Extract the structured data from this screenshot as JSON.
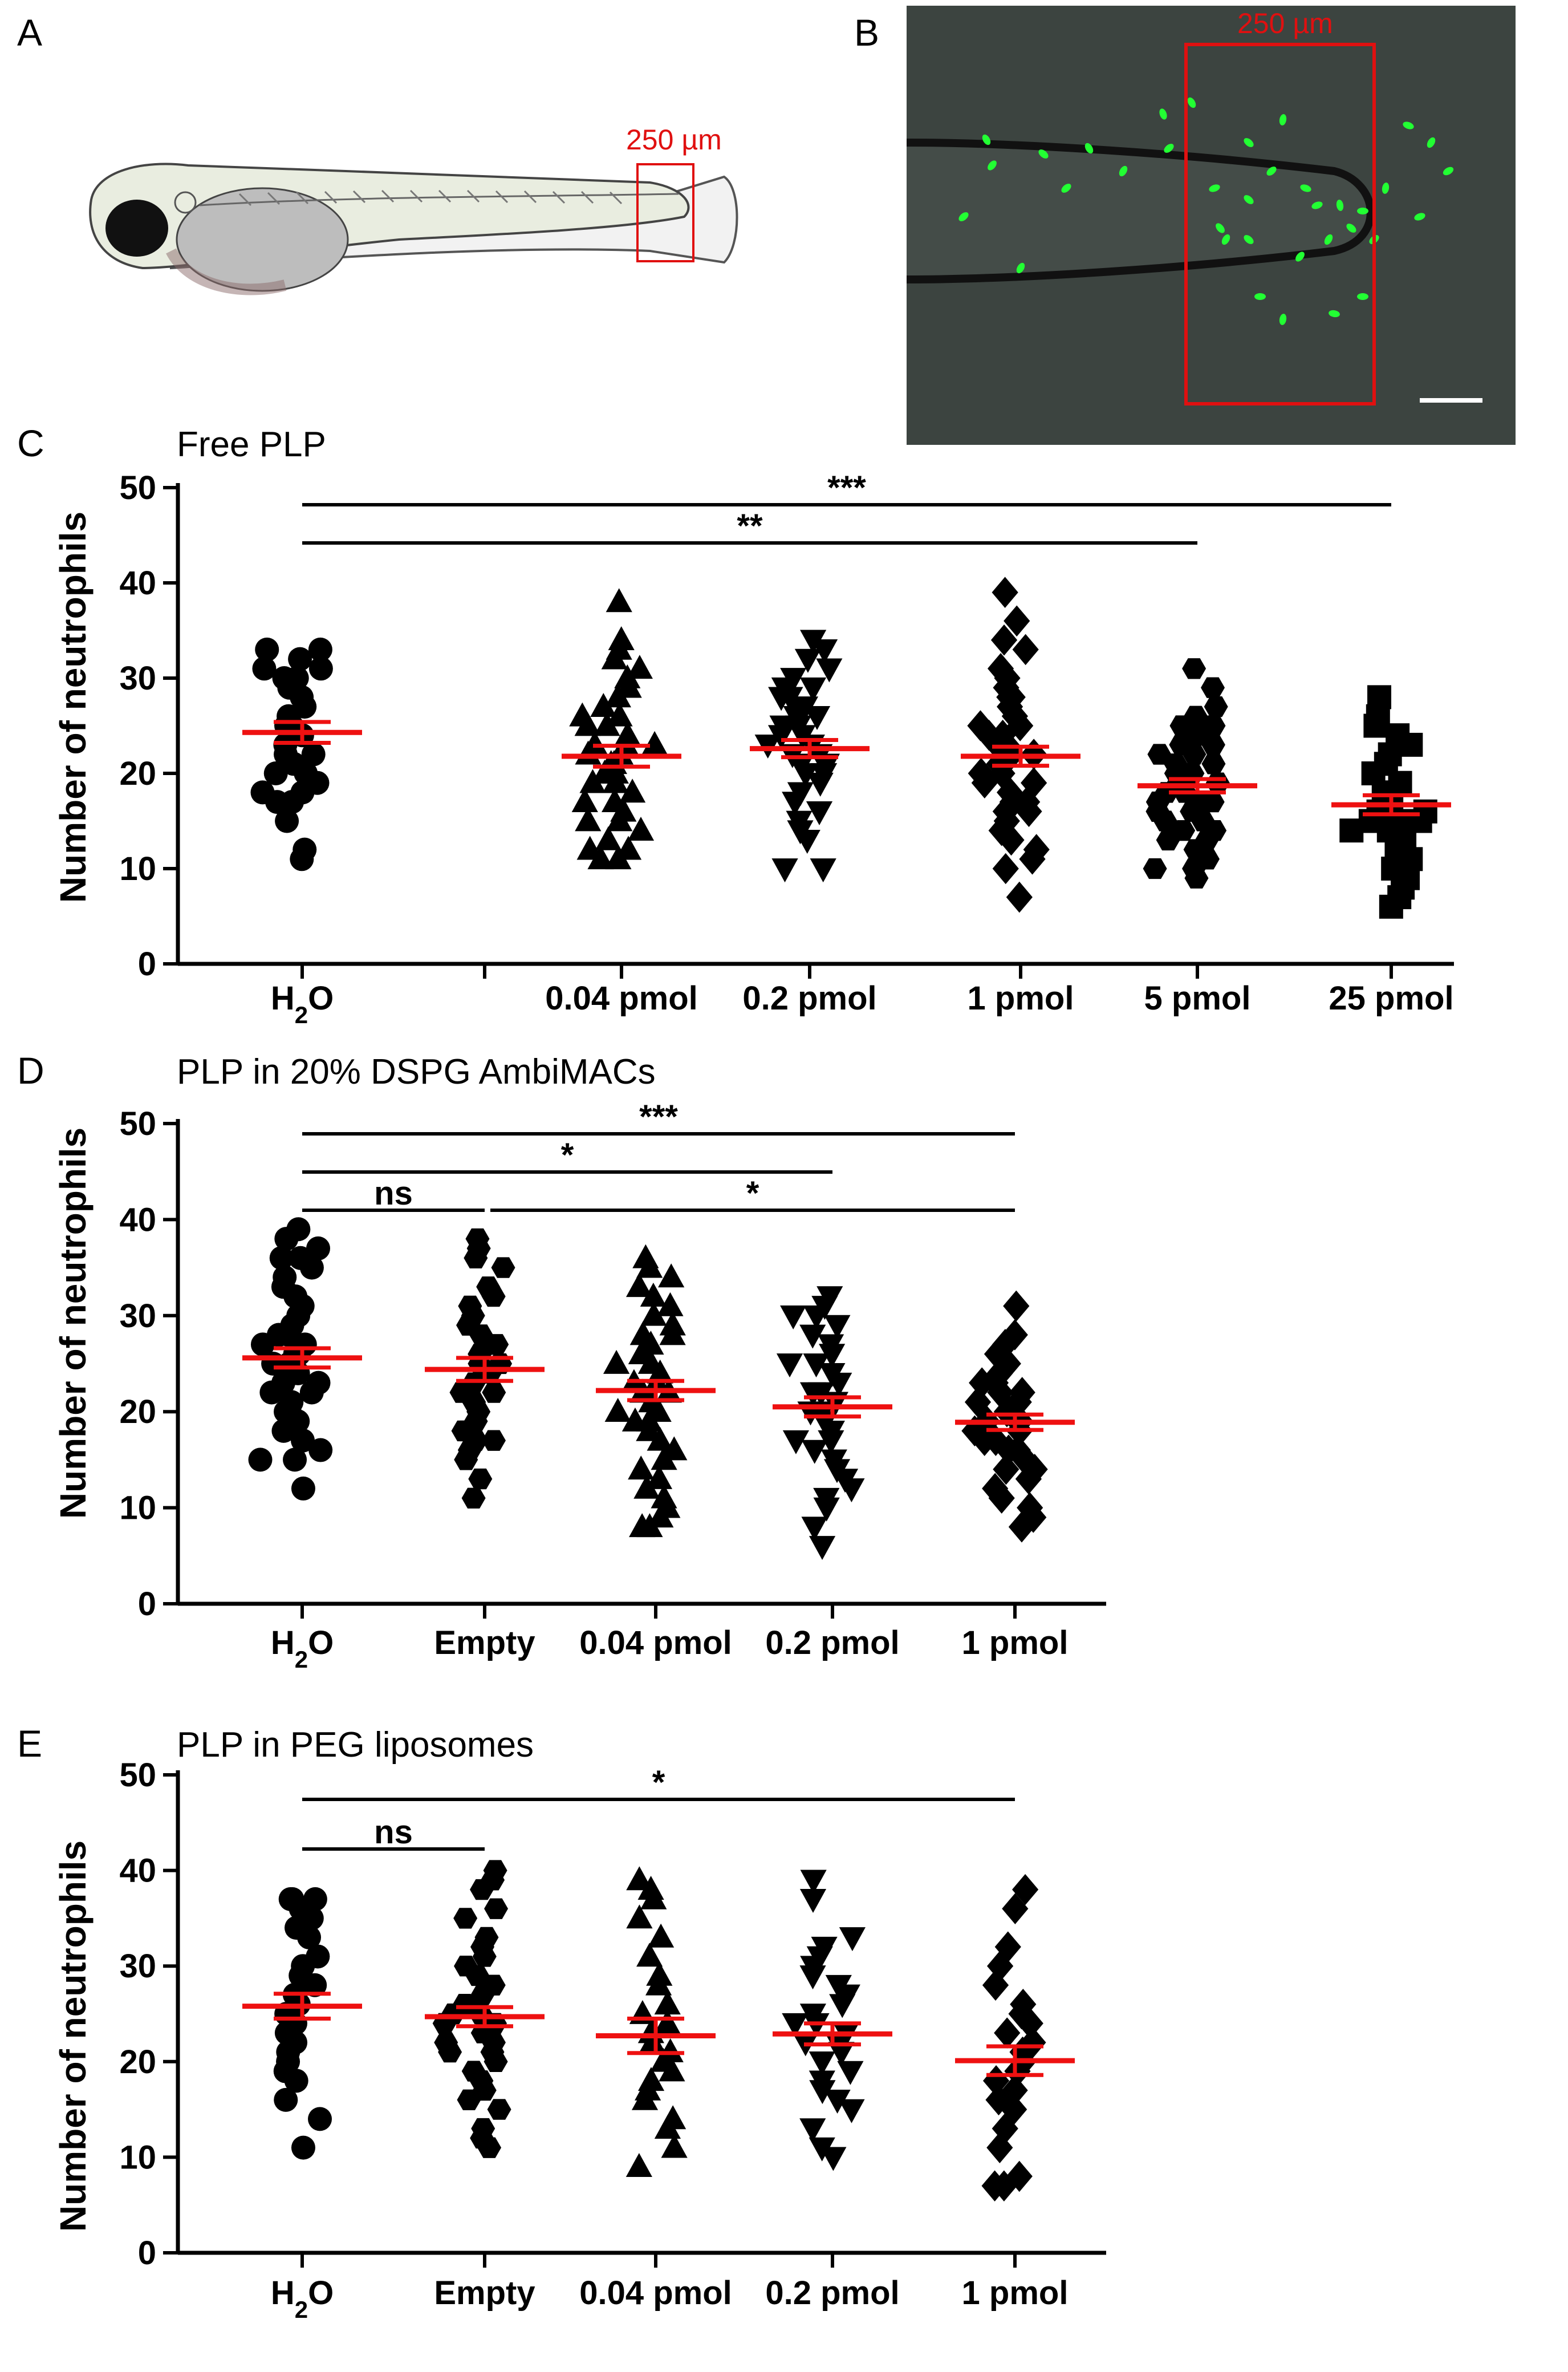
{
  "panel_labels": {
    "a": "A",
    "b": "B",
    "c": "C",
    "d": "D",
    "e": "E"
  },
  "panel_a": {
    "scale_label": "250 µm"
  },
  "panel_b": {
    "scale_label": "250 µm"
  },
  "colors": {
    "mean_bar": "#ee1111",
    "points": "#000000",
    "box": "#e01010",
    "neutrophil": "#22ff33",
    "micro_bg": "#3c4440",
    "larva_body": "#e9ede0"
  },
  "ylabel": "Number of neutrophils",
  "chart_data": [
    {
      "id": "C",
      "type": "scatter",
      "title": "Free PLP",
      "ylabel": "Number of neutrophils",
      "ylim": [
        0,
        50
      ],
      "yticks": [
        0,
        10,
        20,
        30,
        40,
        50
      ],
      "categories": [
        "H2O",
        "0.04 pmol",
        "0.2 pmol",
        "1 pmol",
        "5 pmol",
        "25 pmol"
      ],
      "markers": [
        "circle",
        "triangle-up",
        "triangle-down",
        "diamond",
        "hexagon",
        "square"
      ],
      "series": [
        {
          "name": "H2O",
          "mean": 24.3,
          "sem": 1.1,
          "values": [
            11,
            12,
            15,
            17,
            17,
            18,
            18,
            19,
            20,
            20,
            21,
            22,
            22,
            23,
            24,
            25,
            25,
            26,
            27,
            28,
            29,
            30,
            30,
            31,
            31,
            32,
            33,
            33
          ]
        },
        {
          "name": "0.04 pmol",
          "mean": 21.8,
          "sem": 1.1,
          "values": [
            11,
            11,
            12,
            12,
            13,
            14,
            15,
            15,
            16,
            17,
            17,
            18,
            19,
            19,
            20,
            20,
            21,
            21,
            22,
            22,
            23,
            23,
            23,
            24,
            25,
            25,
            26,
            26,
            27,
            28,
            29,
            30,
            31,
            32,
            33,
            34,
            38
          ]
        },
        {
          "name": "0.2 pmol",
          "mean": 22.6,
          "sem": 0.9,
          "values": [
            10,
            10,
            13,
            14,
            15,
            16,
            17,
            18,
            19,
            20,
            20,
            21,
            21,
            22,
            22,
            23,
            23,
            24,
            24,
            25,
            25,
            26,
            26,
            27,
            27,
            28,
            28,
            29,
            29,
            30,
            31,
            32,
            33,
            34
          ]
        },
        {
          "name": "1 pmol",
          "mean": 21.8,
          "sem": 1.0,
          "values": [
            7,
            10,
            11,
            12,
            13,
            14,
            15,
            16,
            16,
            17,
            17,
            18,
            19,
            19,
            20,
            20,
            21,
            21,
            22,
            22,
            23,
            23,
            24,
            24,
            25,
            25,
            26,
            27,
            28,
            28,
            29,
            30,
            31,
            33,
            34,
            36,
            39
          ]
        },
        {
          "name": "5 pmol",
          "mean": 18.7,
          "sem": 0.7,
          "values": [
            9,
            10,
            10,
            11,
            12,
            13,
            13,
            14,
            14,
            15,
            15,
            16,
            16,
            17,
            17,
            17,
            18,
            18,
            19,
            19,
            19,
            20,
            20,
            21,
            21,
            22,
            22,
            23,
            23,
            24,
            25,
            25,
            26,
            27,
            29,
            31
          ]
        },
        {
          "name": "25 pmol",
          "mean": 16.7,
          "sem": 1.0,
          "values": [
            6,
            7,
            8,
            9,
            10,
            11,
            12,
            13,
            14,
            14,
            15,
            15,
            15,
            16,
            16,
            16,
            17,
            18,
            18,
            19,
            20,
            21,
            22,
            23,
            24,
            25,
            25,
            26,
            28
          ]
        }
      ],
      "xtick_labels": [
        "H2O",
        "",
        "0.04 pmol",
        "0.2 pmol",
        "1 pmol",
        "5 pmol",
        "25 pmol"
      ],
      "significance": [
        {
          "from": "H2O",
          "to": "25 pmol",
          "label": "***"
        },
        {
          "from": "H2O",
          "to": "5 pmol",
          "label": "**"
        }
      ]
    },
    {
      "id": "D",
      "type": "scatter",
      "title": "PLP in 20% DSPG AmbiMACs",
      "ylabel": "Number of neutrophils",
      "ylim": [
        0,
        50
      ],
      "yticks": [
        0,
        10,
        20,
        30,
        40,
        50
      ],
      "categories": [
        "H2O",
        "Empty",
        "0.04 pmol",
        "0.2 pmol",
        "1 pmol"
      ],
      "markers": [
        "circle",
        "hexagon",
        "triangle-up",
        "triangle-down",
        "diamond"
      ],
      "series": [
        {
          "name": "H2O",
          "mean": 25.6,
          "sem": 1.0,
          "values": [
            12,
            15,
            15,
            16,
            17,
            18,
            19,
            20,
            20,
            21,
            22,
            22,
            23,
            23,
            24,
            24,
            25,
            25,
            26,
            26,
            27,
            27,
            28,
            28,
            29,
            30,
            31,
            32,
            33,
            34,
            35,
            36,
            36,
            37,
            38,
            39
          ]
        },
        {
          "name": "Empty",
          "mean": 24.4,
          "sem": 1.2,
          "values": [
            11,
            13,
            15,
            16,
            17,
            17,
            18,
            18,
            19,
            20,
            21,
            22,
            22,
            23,
            24,
            25,
            25,
            26,
            26,
            27,
            28,
            29,
            30,
            31,
            32,
            33,
            35,
            36,
            37,
            38
          ]
        },
        {
          "name": "0.04 pmol",
          "mean": 22.2,
          "sem": 1.0,
          "values": [
            8,
            8,
            9,
            10,
            11,
            12,
            13,
            14,
            15,
            16,
            17,
            18,
            19,
            19,
            20,
            20,
            21,
            22,
            22,
            23,
            23,
            24,
            25,
            25,
            26,
            27,
            28,
            28,
            29,
            30,
            31,
            32,
            33,
            34,
            35,
            36
          ]
        },
        {
          "name": "0.2 pmol",
          "mean": 20.5,
          "sem": 1.0,
          "values": [
            6,
            8,
            10,
            11,
            12,
            13,
            14,
            15,
            16,
            17,
            17,
            18,
            19,
            20,
            20,
            21,
            22,
            22,
            23,
            24,
            25,
            25,
            26,
            27,
            28,
            29,
            30,
            30,
            31,
            32
          ]
        },
        {
          "name": "1 pmol",
          "mean": 18.9,
          "sem": 0.8,
          "values": [
            8,
            9,
            10,
            11,
            12,
            13,
            14,
            14,
            15,
            16,
            16,
            17,
            17,
            18,
            18,
            19,
            19,
            20,
            20,
            21,
            21,
            22,
            22,
            23,
            23,
            24,
            25,
            26,
            27,
            28,
            31
          ]
        }
      ],
      "xtick_labels": [
        "H2O",
        "Empty",
        "0.04 pmol",
        "0.2 pmol",
        "1 pmol"
      ],
      "significance": [
        {
          "from": "H2O",
          "to": "1 pmol",
          "label": "***"
        },
        {
          "from": "H2O",
          "to": "0.2 pmol",
          "label": "*"
        },
        {
          "from": "H2O",
          "to": "Empty",
          "label": "ns"
        },
        {
          "from": "Empty",
          "to": "1 pmol",
          "label": "*"
        }
      ]
    },
    {
      "id": "E",
      "type": "scatter",
      "title": "PLP in PEG liposomes",
      "ylabel": "Number of neutrophils",
      "ylim": [
        0,
        50
      ],
      "yticks": [
        0,
        10,
        20,
        30,
        40,
        50
      ],
      "categories": [
        "H2O",
        "Empty",
        "0.04 pmol",
        "0.2 pmol",
        "1 pmol"
      ],
      "markers": [
        "circle",
        "hexagon",
        "triangle-up",
        "triangle-down",
        "diamond"
      ],
      "series": [
        {
          "name": "H2O",
          "mean": 25.8,
          "sem": 1.3,
          "values": [
            11,
            14,
            16,
            18,
            19,
            20,
            21,
            22,
            23,
            24,
            25,
            26,
            27,
            28,
            29,
            30,
            31,
            33,
            34,
            35,
            36,
            37,
            37,
            37
          ]
        },
        {
          "name": "Empty",
          "mean": 24.7,
          "sem": 1.0,
          "values": [
            11,
            12,
            13,
            15,
            16,
            17,
            18,
            19,
            20,
            21,
            21,
            22,
            22,
            23,
            24,
            24,
            25,
            25,
            26,
            27,
            28,
            29,
            30,
            31,
            32,
            33,
            35,
            36,
            38,
            39,
            40
          ]
        },
        {
          "name": "0.04 pmol",
          "mean": 22.7,
          "sem": 1.8,
          "values": [
            9,
            11,
            13,
            14,
            16,
            17,
            18,
            19,
            20,
            21,
            22,
            23,
            24,
            25,
            26,
            28,
            29,
            31,
            33,
            35,
            37,
            38,
            39
          ]
        },
        {
          "name": "0.2 pmol",
          "mean": 22.9,
          "sem": 1.1,
          "values": [
            10,
            11,
            13,
            15,
            16,
            17,
            18,
            19,
            20,
            21,
            22,
            22,
            23,
            24,
            24,
            25,
            26,
            27,
            28,
            29,
            30,
            31,
            32,
            33,
            37,
            39
          ]
        },
        {
          "name": "1 pmol",
          "mean": 20.1,
          "sem": 1.5,
          "values": [
            7,
            7,
            8,
            11,
            13,
            15,
            16,
            17,
            18,
            19,
            20,
            21,
            22,
            23,
            24,
            25,
            26,
            28,
            30,
            32,
            36,
            38
          ]
        }
      ],
      "xtick_labels": [
        "H2O",
        "Empty",
        "0.04 pmol",
        "0.2 pmol",
        "1 pmol"
      ],
      "significance": [
        {
          "from": "H2O",
          "to": "1 pmol",
          "label": "*"
        },
        {
          "from": "H2O",
          "to": "Empty",
          "label": "ns"
        }
      ]
    }
  ]
}
